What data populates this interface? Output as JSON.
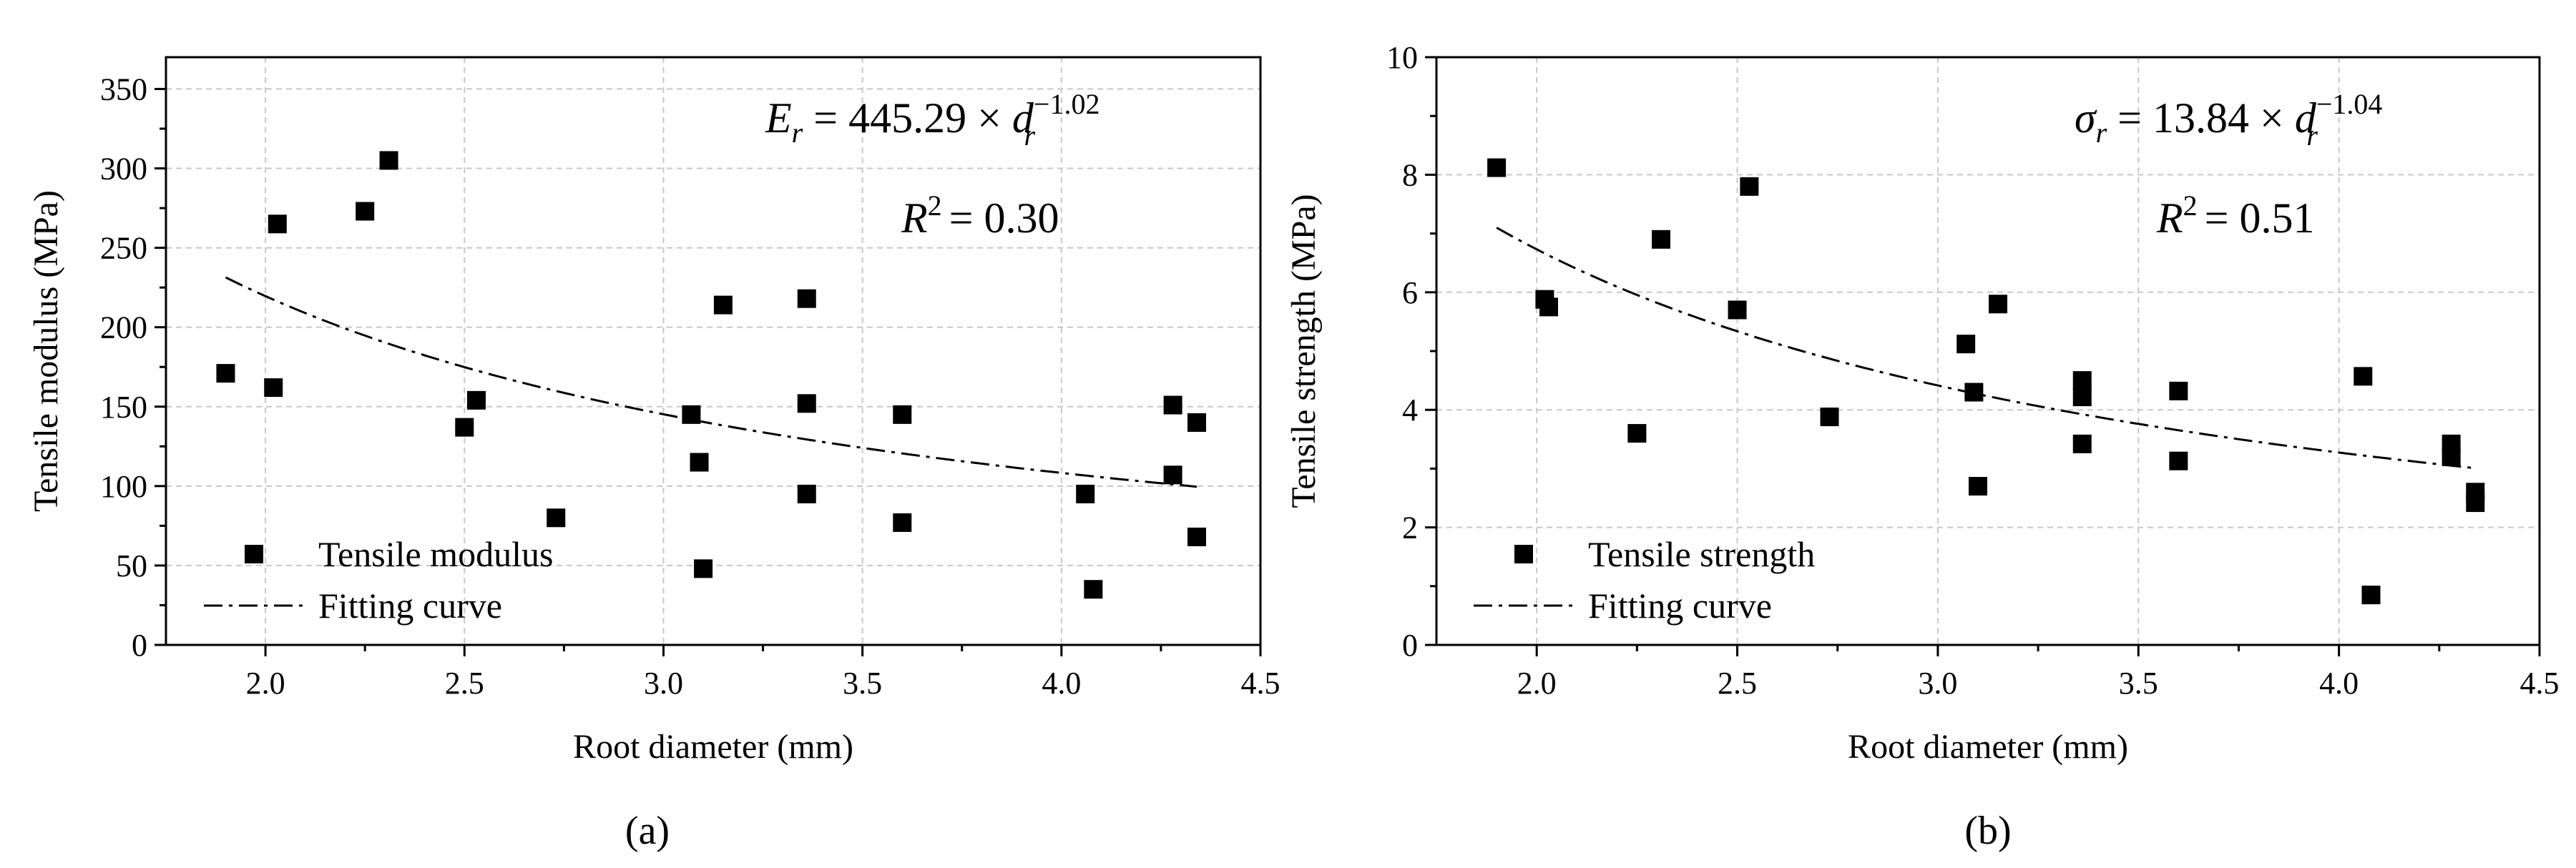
{
  "chart_data": [
    {
      "type": "scatter",
      "panel_label": "(a)",
      "xlabel": "Root diameter (mm)",
      "ylabel": "Tensile modulus (MPa)",
      "xlim": [
        1.75,
        4.5
      ],
      "ylim": [
        0,
        370
      ],
      "x_ticks": [
        2.0,
        2.5,
        3.0,
        3.5,
        4.0,
        4.5
      ],
      "x_tick_labels": [
        "2.0",
        "2.5",
        "3.0",
        "3.5",
        "4.0",
        "4.5"
      ],
      "y_ticks": [
        0,
        50,
        100,
        150,
        200,
        250,
        300,
        350
      ],
      "y_tick_labels": [
        "0",
        "50",
        "100",
        "150",
        "200",
        "250",
        "300",
        "350"
      ],
      "grid": true,
      "legend": {
        "position": "bottom-left",
        "scatter_label": "Tensile modulus",
        "line_label": "Fitting curve"
      },
      "equation": {
        "lhs_symbol": "E",
        "lhs_sub": "r",
        "rhs": "= 445.29 × d",
        "d_sub": "r",
        "exponent": "−1.02",
        "r_squared": "R",
        "r_squared_exp": "2",
        "r_squared_value": "= 0.30"
      },
      "fit": {
        "a": 445.29,
        "b": -1.02,
        "x_range": [
          1.9,
          4.34
        ]
      },
      "series": [
        {
          "name": "Tensile modulus",
          "points": [
            [
              1.9,
              171
            ],
            [
              2.02,
              162
            ],
            [
              2.03,
              265
            ],
            [
              2.25,
              273
            ],
            [
              2.31,
              305
            ],
            [
              2.5,
              137
            ],
            [
              2.53,
              154
            ],
            [
              2.73,
              80
            ],
            [
              3.07,
              145
            ],
            [
              3.09,
              115
            ],
            [
              3.1,
              48
            ],
            [
              3.15,
              214
            ],
            [
              3.36,
              218
            ],
            [
              3.36,
              152
            ],
            [
              3.36,
              95
            ],
            [
              3.6,
              145
            ],
            [
              3.6,
              77
            ],
            [
              4.06,
              95
            ],
            [
              4.08,
              35
            ],
            [
              4.28,
              151
            ],
            [
              4.28,
              107
            ],
            [
              4.34,
              140
            ],
            [
              4.34,
              68
            ]
          ]
        }
      ]
    },
    {
      "type": "scatter",
      "panel_label": "(b)",
      "xlabel": "Root diameter (mm)",
      "ylabel": "Tensile strength (MPa)",
      "xlim": [
        1.75,
        4.5
      ],
      "ylim": [
        0,
        10
      ],
      "x_ticks": [
        2.0,
        2.5,
        3.0,
        3.5,
        4.0,
        4.5
      ],
      "x_tick_labels": [
        "2.0",
        "2.5",
        "3.0",
        "3.5",
        "4.0",
        "4.5"
      ],
      "y_ticks": [
        0,
        2,
        4,
        6,
        8,
        10
      ],
      "y_tick_labels": [
        "0",
        "2",
        "4",
        "6",
        "8",
        "10"
      ],
      "grid": true,
      "legend": {
        "position": "bottom-left",
        "scatter_label": "Tensile strength",
        "line_label": "Fitting curve"
      },
      "equation": {
        "lhs_symbol": "σ",
        "lhs_sub": "r",
        "rhs": "= 13.84 × d",
        "d_sub": "r",
        "exponent": "−1.04",
        "r_squared": "R",
        "r_squared_exp": "2",
        "r_squared_value": "= 0.51"
      },
      "fit": {
        "a": 13.84,
        "b": -1.04,
        "x_range": [
          1.9,
          4.34
        ]
      },
      "series": [
        {
          "name": "Tensile strength",
          "points": [
            [
              1.9,
              8.12
            ],
            [
              2.02,
              5.88
            ],
            [
              2.03,
              5.75
            ],
            [
              2.25,
              3.6
            ],
            [
              2.31,
              6.9
            ],
            [
              2.5,
              5.7
            ],
            [
              2.53,
              7.8
            ],
            [
              2.73,
              3.88
            ],
            [
              3.07,
              5.12
            ],
            [
              3.09,
              4.3
            ],
            [
              3.1,
              2.7
            ],
            [
              3.15,
              5.8
            ],
            [
              3.36,
              4.5
            ],
            [
              3.36,
              4.22
            ],
            [
              3.36,
              3.42
            ],
            [
              3.6,
              4.32
            ],
            [
              3.6,
              3.13
            ],
            [
              4.06,
              4.57
            ],
            [
              4.08,
              0.85
            ],
            [
              4.28,
              3.42
            ],
            [
              4.28,
              3.2
            ],
            [
              4.34,
              2.6
            ],
            [
              4.34,
              2.42
            ]
          ]
        }
      ]
    }
  ]
}
